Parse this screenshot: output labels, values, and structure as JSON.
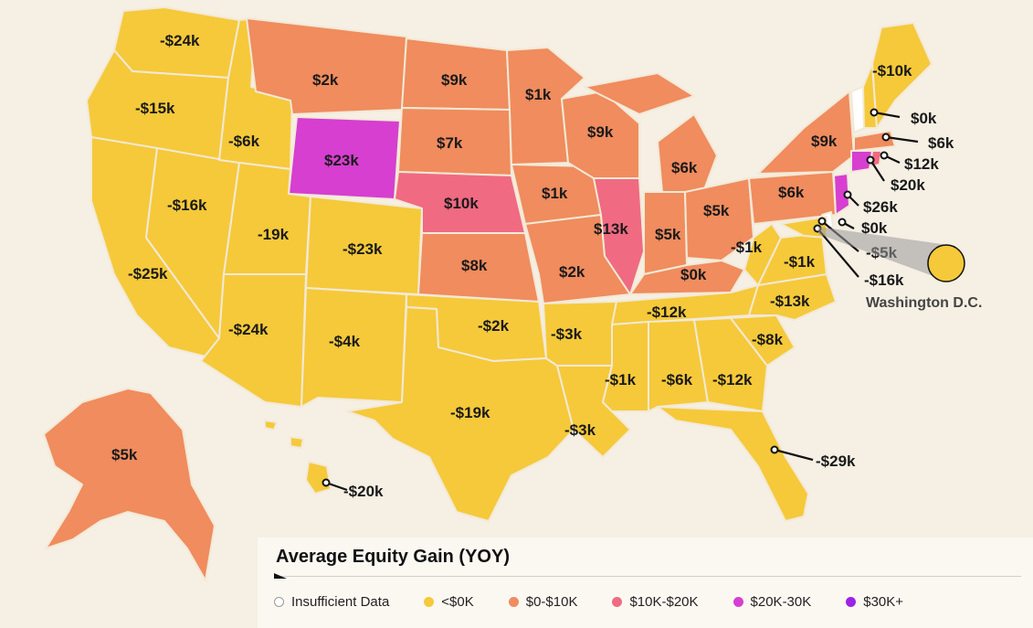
{
  "map": {
    "colors": {
      "neg": "#f5c93a",
      "low": "#f08c5e",
      "mid": "#f06a82",
      "high": "#d63fd0",
      "top": "#9d22e6",
      "none": "#ffffff"
    },
    "state_labels": {
      "WA": "-$24k",
      "OR": "-$15k",
      "CA": "-$25k",
      "NV": "-$16k",
      "ID": "-$6k",
      "MT": "$2k",
      "WY": "$23k",
      "UT": "-19k",
      "CO": "-$23k",
      "AZ": "-$24k",
      "NM": "-$4k",
      "ND": "$9k",
      "SD": "$7k",
      "NE": "$10k",
      "KS": "$8k",
      "OK": "-$2k",
      "TX": "-$19k",
      "MN": "$1k",
      "IA": "$1k",
      "MO": "$2k",
      "AR": "-$3k",
      "LA": "-$3k",
      "WI": "$9k",
      "IL": "$13k",
      "MI": "$6k",
      "IN": "$5k",
      "OH": "$5k",
      "KY": "$0k",
      "TN": "-$12k",
      "MS": "-$1k",
      "AL": "-$6k",
      "GA": "-$12k",
      "FL": "-$29k",
      "SC": "-$8k",
      "NC": "-$13k",
      "VA": "-$1k",
      "WV": "-$1k",
      "PA": "$6k",
      "NY": "$9k",
      "ME": "-$10k",
      "AK": "$5k",
      "HI": "-$20k"
    },
    "callouts": {
      "NH": "$0k",
      "MA": "$6k",
      "RI": "$12k",
      "CT": "$20k",
      "NJ": "$26k",
      "DE": "$0k",
      "MD": "-$5k",
      "DC": "-$16k"
    },
    "dc_caption": "Washington D.C."
  },
  "legend": {
    "title": "Average Equity Gain (YOY)",
    "items": [
      {
        "label": "Insufficient Data",
        "color": "#ffffff"
      },
      {
        "label": "<$0K",
        "color": "#f5c93a"
      },
      {
        "label": "$0-$10K",
        "color": "#f08c5e"
      },
      {
        "label": "$10K-$20K",
        "color": "#f06a82"
      },
      {
        "label": "$20K-30K",
        "color": "#d63fd0"
      },
      {
        "label": "$30K+",
        "color": "#9d22e6"
      }
    ]
  }
}
